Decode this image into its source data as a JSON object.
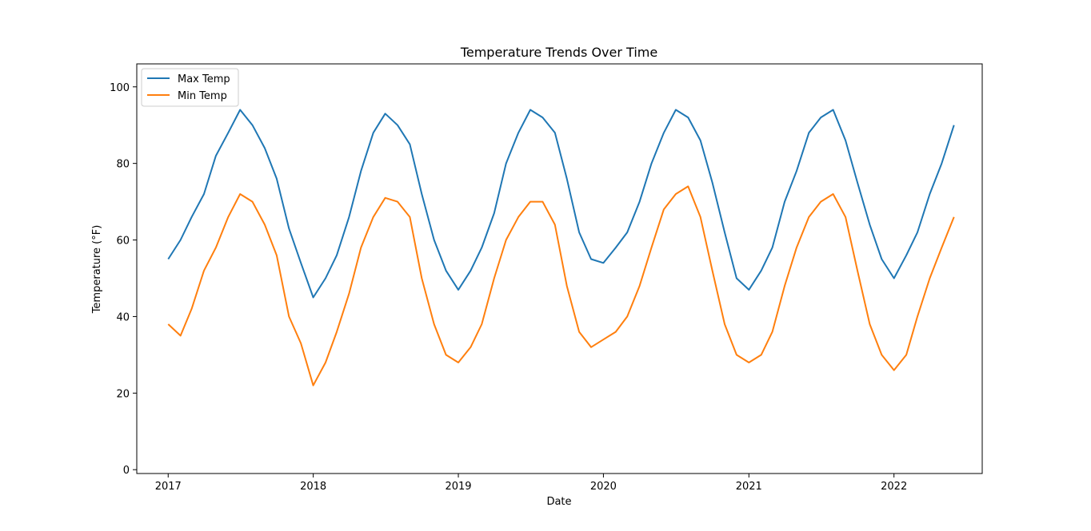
{
  "chart_data": {
    "type": "line",
    "title": "Temperature Trends Over Time",
    "xlabel": "Date",
    "ylabel": "Temperature (°F)",
    "xlim": [
      "2016-10-14",
      "2022-08-11"
    ],
    "ylim": [
      -1,
      106
    ],
    "x_ticks": [
      "2017",
      "2018",
      "2019",
      "2020",
      "2021",
      "2022"
    ],
    "y_ticks": [
      0,
      20,
      40,
      60,
      80,
      100
    ],
    "grid": false,
    "legend_position": "top-left",
    "colors": {
      "Max Temp": "#1f77b4",
      "Min Temp": "#ff7f0e"
    },
    "x": [
      "2017-01-01",
      "2017-02-01",
      "2017-03-01",
      "2017-04-01",
      "2017-05-01",
      "2017-06-01",
      "2017-07-01",
      "2017-08-01",
      "2017-09-01",
      "2017-10-01",
      "2017-11-01",
      "2017-12-01",
      "2018-01-01",
      "2018-02-01",
      "2018-03-01",
      "2018-04-01",
      "2018-05-01",
      "2018-06-01",
      "2018-07-01",
      "2018-08-01",
      "2018-09-01",
      "2018-10-01",
      "2018-11-01",
      "2018-12-01",
      "2019-01-01",
      "2019-02-01",
      "2019-03-01",
      "2019-04-01",
      "2019-05-01",
      "2019-06-01",
      "2019-07-01",
      "2019-08-01",
      "2019-09-01",
      "2019-10-01",
      "2019-11-01",
      "2019-12-01",
      "2020-01-01",
      "2020-02-01",
      "2020-03-01",
      "2020-04-01",
      "2020-05-01",
      "2020-06-01",
      "2020-07-01",
      "2020-08-01",
      "2020-09-01",
      "2020-10-01",
      "2020-11-01",
      "2020-12-01",
      "2021-01-01",
      "2021-02-01",
      "2021-03-01",
      "2021-04-01",
      "2021-05-01",
      "2021-06-01",
      "2021-07-01",
      "2021-08-01",
      "2021-09-01",
      "2021-10-01",
      "2021-11-01",
      "2021-12-01",
      "2022-01-01",
      "2022-02-01",
      "2022-03-01",
      "2022-04-01",
      "2022-05-01",
      "2022-06-01"
    ],
    "series": [
      {
        "name": "Max Temp",
        "values": [
          55,
          60,
          66,
          72,
          82,
          88,
          94,
          90,
          84,
          76,
          63,
          54,
          45,
          50,
          56,
          66,
          78,
          88,
          93,
          90,
          85,
          72,
          60,
          52,
          47,
          52,
          58,
          67,
          80,
          88,
          94,
          92,
          88,
          76,
          62,
          55,
          54,
          58,
          62,
          70,
          80,
          88,
          94,
          92,
          86,
          75,
          62,
          50,
          47,
          52,
          58,
          70,
          78,
          88,
          92,
          94,
          86,
          75,
          64,
          55,
          50,
          56,
          62,
          72,
          80,
          90
        ]
      },
      {
        "name": "Min Temp",
        "values": [
          38,
          35,
          42,
          52,
          58,
          66,
          72,
          70,
          64,
          56,
          40,
          33,
          22,
          28,
          36,
          46,
          58,
          66,
          71,
          70,
          66,
          50,
          38,
          30,
          28,
          32,
          38,
          50,
          60,
          66,
          70,
          70,
          64,
          48,
          36,
          32,
          34,
          36,
          40,
          48,
          58,
          68,
          72,
          74,
          66,
          52,
          38,
          30,
          28,
          30,
          36,
          48,
          58,
          66,
          70,
          72,
          66,
          52,
          38,
          30,
          26,
          30,
          40,
          50,
          58,
          66
        ]
      }
    ]
  }
}
